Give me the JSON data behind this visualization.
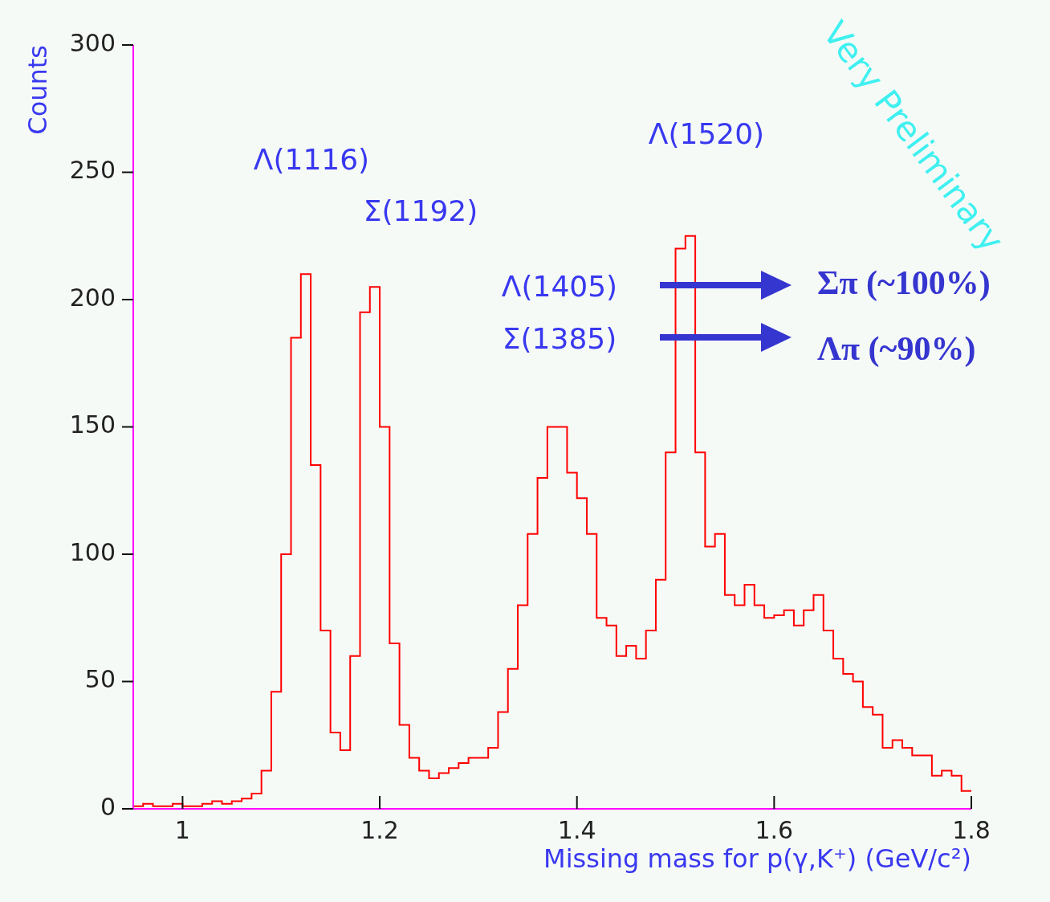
{
  "chart_data": {
    "type": "histogram",
    "xlabel": "Missing mass for p(γ,K⁺) (GeV/c²)",
    "ylabel": "Counts",
    "bins": [
      0.95,
      0.96,
      0.97,
      0.98,
      0.99,
      1.0,
      1.01,
      1.02,
      1.03,
      1.04,
      1.05,
      1.06,
      1.07,
      1.08,
      1.09,
      1.1,
      1.11,
      1.12,
      1.13,
      1.14,
      1.15,
      1.16,
      1.17,
      1.18,
      1.19,
      1.2,
      1.21,
      1.22,
      1.23,
      1.24,
      1.25,
      1.26,
      1.27,
      1.28,
      1.29,
      1.3,
      1.31,
      1.32,
      1.33,
      1.34,
      1.35,
      1.36,
      1.37,
      1.38,
      1.39,
      1.4,
      1.41,
      1.42,
      1.43,
      1.44,
      1.45,
      1.46,
      1.47,
      1.48,
      1.49,
      1.5,
      1.51,
      1.52,
      1.53,
      1.54,
      1.55,
      1.56,
      1.57,
      1.58,
      1.59,
      1.6,
      1.61,
      1.62,
      1.63,
      1.64,
      1.65,
      1.66,
      1.67,
      1.68,
      1.69,
      1.7,
      1.71,
      1.72,
      1.73,
      1.74,
      1.75,
      1.76,
      1.77,
      1.78,
      1.79,
      1.8
    ],
    "values": [
      1,
      2,
      1,
      1,
      2,
      1,
      1,
      2,
      3,
      2,
      3,
      4,
      6,
      15,
      46,
      100,
      185,
      210,
      135,
      70,
      30,
      23,
      60,
      195,
      205,
      150,
      65,
      33,
      20,
      15,
      12,
      14,
      16,
      18,
      20,
      20,
      24,
      38,
      55,
      80,
      108,
      130,
      150,
      150,
      132,
      122,
      108,
      75,
      72,
      60,
      64,
      59,
      70,
      90,
      140,
      220,
      225,
      140,
      103,
      108,
      84,
      80,
      88,
      80,
      75,
      76,
      78,
      72,
      78,
      84,
      70,
      59,
      53,
      50,
      40,
      37,
      24,
      27,
      24,
      21,
      21,
      13,
      15,
      13,
      7
    ],
    "color": "#ff0000",
    "xlim": [
      0.95,
      1.8
    ],
    "ylim": [
      0,
      300
    ],
    "xticks": [
      1,
      1.2,
      1.4,
      1.6,
      1.8
    ],
    "yticks": [
      0,
      50,
      100,
      150,
      200,
      250,
      300
    ],
    "annotations": [
      "Λ(1116)",
      "Σ(1192)",
      "Λ(1520)",
      "Λ(1405)",
      "Σ(1385)",
      "Σπ (~100%)",
      "Λπ (~90%)",
      "Very Preliminary"
    ]
  }
}
